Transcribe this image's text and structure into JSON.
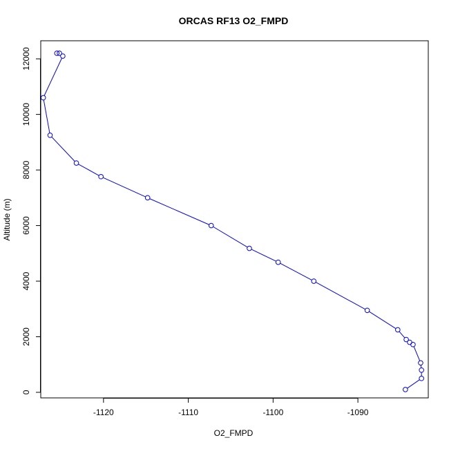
{
  "chart_data": {
    "type": "line",
    "title": "ORCAS RF13 O2_FMPD",
    "xlabel": "O2_FMPD",
    "ylabel": "Altitude (m)",
    "xlim": [
      -1127.4,
      -1081.7
    ],
    "ylim": [
      -200,
      12650
    ],
    "x_ticks": [
      -1120,
      -1110,
      -1100,
      -1090
    ],
    "y_ticks": [
      0,
      2000,
      4000,
      6000,
      8000,
      10000,
      12000
    ],
    "grid": false,
    "legend": "none",
    "series": [
      {
        "color": "#0000ff",
        "marker": "open-circle",
        "x": [
          -1125.5,
          -1125.2,
          -1124.8,
          -1127.1,
          -1126.3,
          -1123.2,
          -1120.3,
          -1114.8,
          -1107.3,
          -1102.8,
          -1099.4,
          -1095.2,
          -1088.9,
          -1085.3,
          -1084.3,
          -1083.9,
          -1083.5,
          -1082.6,
          -1082.5,
          -1082.5,
          -1084.4
        ],
        "y": [
          12200,
          12200,
          12100,
          10600,
          9250,
          8250,
          7760,
          7000,
          6000,
          5180,
          4680,
          4000,
          2950,
          2250,
          1900,
          1800,
          1720,
          1060,
          800,
          500,
          100
        ]
      }
    ]
  }
}
